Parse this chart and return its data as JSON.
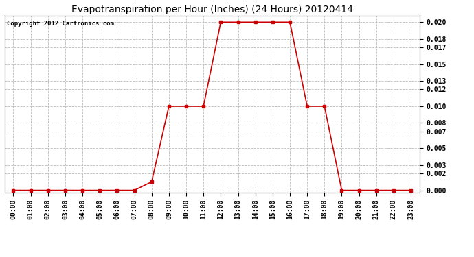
{
  "title": "Evapotranspiration per Hour (Inches) (24 Hours) 20120414",
  "copyright_text": "Copyright 2012 Cartronics.com",
  "hours": [
    0,
    1,
    2,
    3,
    4,
    5,
    6,
    7,
    8,
    9,
    10,
    11,
    12,
    13,
    14,
    15,
    16,
    17,
    18,
    19,
    20,
    21,
    22,
    23
  ],
  "values": [
    0.0,
    0.0,
    0.0,
    0.0,
    0.0,
    0.0,
    0.0,
    0.0,
    0.001,
    0.01,
    0.01,
    0.01,
    0.02,
    0.02,
    0.02,
    0.02,
    0.02,
    0.01,
    0.01,
    0.0,
    0.0,
    0.0,
    0.0,
    0.0
  ],
  "yticks": [
    0.0,
    0.002,
    0.003,
    0.005,
    0.007,
    0.008,
    0.01,
    0.012,
    0.013,
    0.015,
    0.017,
    0.018,
    0.02
  ],
  "line_color": "#cc0000",
  "marker": "s",
  "marker_size": 2.5,
  "background_color": "#ffffff",
  "plot_bg_color": "#ffffff",
  "grid_color": "#bbbbbb",
  "title_fontsize": 10,
  "tick_fontsize": 7,
  "copyright_fontsize": 6.5,
  "ylim": [
    -0.0003,
    0.0208
  ]
}
